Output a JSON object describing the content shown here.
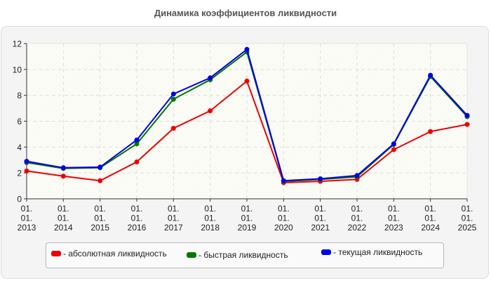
{
  "title": "Динамика коэффициентов ликвидности",
  "chart_data": {
    "type": "line",
    "title": "Динамика коэффициентов ликвидности",
    "xlabel": "",
    "ylabel": "",
    "categories": [
      "01.\n01.\n2013",
      "01.\n01.\n2014",
      "01.\n01.\n2015",
      "01.\n01.\n2016",
      "01.\n01.\n2017",
      "01.\n01.\n2018",
      "01.\n01.\n2019",
      "01.\n01.\n2020",
      "01.\n01.\n2021",
      "01.\n01.\n2022",
      "01.\n01.\n2023",
      "01.\n01.\n2024",
      "01.\n01.\n2025"
    ],
    "x_ticks": [
      {
        "l1": "01.",
        "l2": "01.",
        "l3": "2013"
      },
      {
        "l1": "01.",
        "l2": "01.",
        "l3": "2014"
      },
      {
        "l1": "01.",
        "l2": "01.",
        "l3": "2015"
      },
      {
        "l1": "01.",
        "l2": "01.",
        "l3": "2016"
      },
      {
        "l1": "01.",
        "l2": "01.",
        "l3": "2017"
      },
      {
        "l1": "01.",
        "l2": "01.",
        "l3": "2018"
      },
      {
        "l1": "01.",
        "l2": "01.",
        "l3": "2019"
      },
      {
        "l1": "01.",
        "l2": "01.",
        "l3": "2020"
      },
      {
        "l1": "01.",
        "l2": "01.",
        "l3": "2021"
      },
      {
        "l1": "01.",
        "l2": "01.",
        "l3": "2022"
      },
      {
        "l1": "01.",
        "l2": "01.",
        "l3": "2023"
      },
      {
        "l1": "01.",
        "l2": "01.",
        "l3": "2024"
      },
      {
        "l1": "01.",
        "l2": "01.",
        "l3": "2025"
      }
    ],
    "y_ticks": [
      0,
      2,
      4,
      6,
      8,
      10,
      12
    ],
    "ylim": [
      0,
      12
    ],
    "grid": true,
    "legend_position": "bottom",
    "series": [
      {
        "name": "абсолютная ликвидность",
        "color": "#ee0000",
        "values": [
          2.15,
          1.75,
          1.4,
          2.85,
          5.45,
          6.8,
          9.1,
          1.25,
          1.35,
          1.5,
          3.8,
          5.2,
          5.75
        ]
      },
      {
        "name": "быстрая ликвидность",
        "color": "#007700",
        "values": [
          2.8,
          2.35,
          2.4,
          4.25,
          7.7,
          9.2,
          11.35,
          1.35,
          1.5,
          1.7,
          4.2,
          9.45,
          6.35
        ]
      },
      {
        "name": "текущая ликвидность",
        "color": "#0000ee",
        "values": [
          2.9,
          2.4,
          2.45,
          4.55,
          8.1,
          9.35,
          11.55,
          1.4,
          1.55,
          1.8,
          4.25,
          9.55,
          6.45
        ]
      }
    ]
  },
  "legend": {
    "items": [
      {
        "label": "- абсолютная ликвидность",
        "color": "#ee0000"
      },
      {
        "label": "- быстрая ликвидность",
        "color": "#007700"
      },
      {
        "label": "- текущая ликвидность",
        "color": "#0000ee"
      }
    ]
  }
}
